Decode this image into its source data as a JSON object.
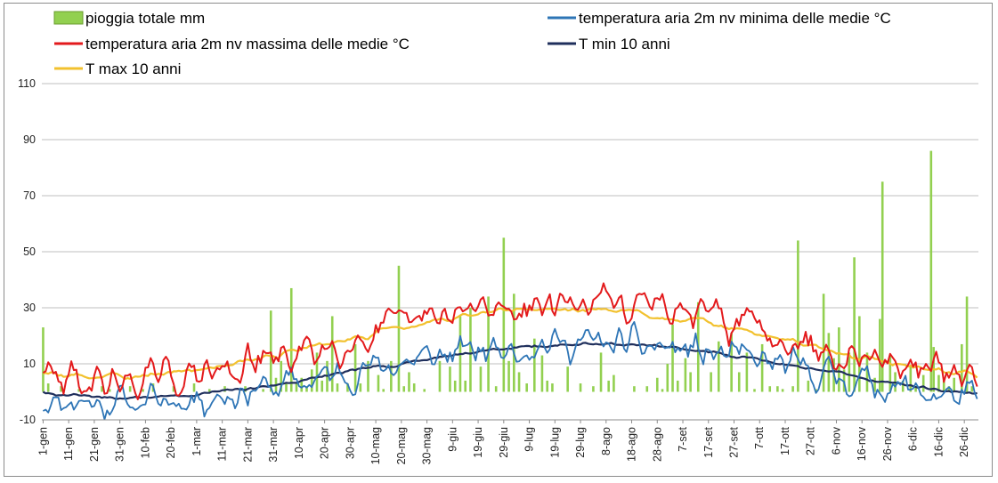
{
  "chart_data": {
    "type": "bar+line",
    "x_labels": [
      "1-gen",
      "11-gen",
      "21-gen",
      "31-gen",
      "10-feb",
      "20-feb",
      "1-mar",
      "11-mar",
      "21-mar",
      "31-mar",
      "10-apr",
      "20-apr",
      "30-apr",
      "10-mag",
      "20-mag",
      "30-mag",
      "9-giu",
      "19-giu",
      "29-giu",
      "9-lug",
      "19-lug",
      "29-lug",
      "8-ago",
      "18-ago",
      "28-ago",
      "7-set",
      "17-set",
      "27-set",
      "7-ott",
      "17-ott",
      "27-ott",
      "6-nov",
      "16-nov",
      "26-nov",
      "6-dic",
      "16-dic",
      "26-dic"
    ],
    "ylim": [
      -10,
      110
    ],
    "yticks": [
      -10,
      10,
      30,
      50,
      70,
      90,
      110
    ],
    "grid": "horizontal",
    "legend_position": "top",
    "legend": [
      {
        "id": "rain",
        "label": "pioggia totale mm",
        "kind": "bar",
        "color": "#92d050"
      },
      {
        "id": "tmin",
        "label": "temperatura aria 2m nv minima delle medie °C",
        "kind": "line",
        "color": "#2e75b6"
      },
      {
        "id": "tmax",
        "label": "temperatura aria 2m nv massima delle medie °C",
        "kind": "line",
        "color": "#e31a1c"
      },
      {
        "id": "tmin10",
        "label": "T min 10 anni",
        "kind": "line",
        "color": "#1f2f5c"
      },
      {
        "id": "tmax10",
        "label": "T max 10 anni",
        "kind": "line",
        "color": "#f2c12e"
      }
    ],
    "series_meta": {
      "rain": {
        "color": "#92d050"
      },
      "tmin": {
        "color": "#2e75b6"
      },
      "tmax": {
        "color": "#e31a1c"
      },
      "tmin10": {
        "color": "#1f2f5c"
      },
      "tmax10": {
        "color": "#f2c12e"
      }
    },
    "rain_days": [
      [
        1,
        23
      ],
      [
        3,
        3
      ],
      [
        8,
        2
      ],
      [
        15,
        1
      ],
      [
        24,
        2
      ],
      [
        27,
        1
      ],
      [
        35,
        2
      ],
      [
        40,
        1
      ],
      [
        44,
        3
      ],
      [
        52,
        2
      ],
      [
        60,
        3
      ],
      [
        66,
        1
      ],
      [
        72,
        2
      ],
      [
        80,
        2
      ],
      [
        87,
        1
      ],
      [
        90,
        29
      ],
      [
        92,
        5
      ],
      [
        94,
        11
      ],
      [
        96,
        3
      ],
      [
        98,
        37
      ],
      [
        100,
        3
      ],
      [
        102,
        5
      ],
      [
        104,
        2
      ],
      [
        106,
        8
      ],
      [
        108,
        14
      ],
      [
        110,
        4
      ],
      [
        112,
        11
      ],
      [
        114,
        27
      ],
      [
        116,
        3
      ],
      [
        120,
        3
      ],
      [
        123,
        17
      ],
      [
        125,
        3
      ],
      [
        128,
        11
      ],
      [
        132,
        6
      ],
      [
        134,
        1
      ],
      [
        137,
        11
      ],
      [
        140,
        45
      ],
      [
        142,
        2
      ],
      [
        144,
        7
      ],
      [
        146,
        3
      ],
      [
        150,
        1
      ],
      [
        156,
        11
      ],
      [
        160,
        9
      ],
      [
        162,
        4
      ],
      [
        164,
        27
      ],
      [
        166,
        4
      ],
      [
        168,
        30
      ],
      [
        172,
        9
      ],
      [
        175,
        34
      ],
      [
        178,
        2
      ],
      [
        181,
        55
      ],
      [
        183,
        11
      ],
      [
        185,
        35
      ],
      [
        187,
        7
      ],
      [
        190,
        3
      ],
      [
        193,
        19
      ],
      [
        196,
        13
      ],
      [
        198,
        4
      ],
      [
        200,
        3
      ],
      [
        206,
        9
      ],
      [
        211,
        3
      ],
      [
        216,
        2
      ],
      [
        219,
        14
      ],
      [
        222,
        4
      ],
      [
        224,
        6
      ],
      [
        232,
        2
      ],
      [
        237,
        2
      ],
      [
        241,
        5
      ],
      [
        243,
        1
      ],
      [
        245,
        10
      ],
      [
        247,
        24
      ],
      [
        249,
        4
      ],
      [
        252,
        12
      ],
      [
        254,
        7
      ],
      [
        257,
        32
      ],
      [
        262,
        7
      ],
      [
        265,
        18
      ],
      [
        270,
        21
      ],
      [
        273,
        7
      ],
      [
        276,
        14
      ],
      [
        279,
        1
      ],
      [
        282,
        17
      ],
      [
        285,
        2
      ],
      [
        288,
        2
      ],
      [
        290,
        1
      ],
      [
        294,
        2
      ],
      [
        296,
        54
      ],
      [
        300,
        4
      ],
      [
        303,
        1
      ],
      [
        306,
        35
      ],
      [
        308,
        21
      ],
      [
        310,
        12
      ],
      [
        312,
        23
      ],
      [
        314,
        8
      ],
      [
        316,
        14
      ],
      [
        318,
        48
      ],
      [
        320,
        27
      ],
      [
        323,
        14
      ],
      [
        326,
        5
      ],
      [
        328,
        26
      ],
      [
        329,
        75
      ],
      [
        332,
        13
      ],
      [
        334,
        7
      ],
      [
        337,
        4
      ],
      [
        340,
        9
      ],
      [
        342,
        2
      ],
      [
        345,
        6
      ],
      [
        348,
        86
      ],
      [
        349,
        16
      ],
      [
        351,
        6
      ],
      [
        353,
        4
      ],
      [
        355,
        2
      ],
      [
        357,
        5
      ],
      [
        360,
        17
      ],
      [
        362,
        34
      ],
      [
        364,
        2
      ]
    ]
  }
}
